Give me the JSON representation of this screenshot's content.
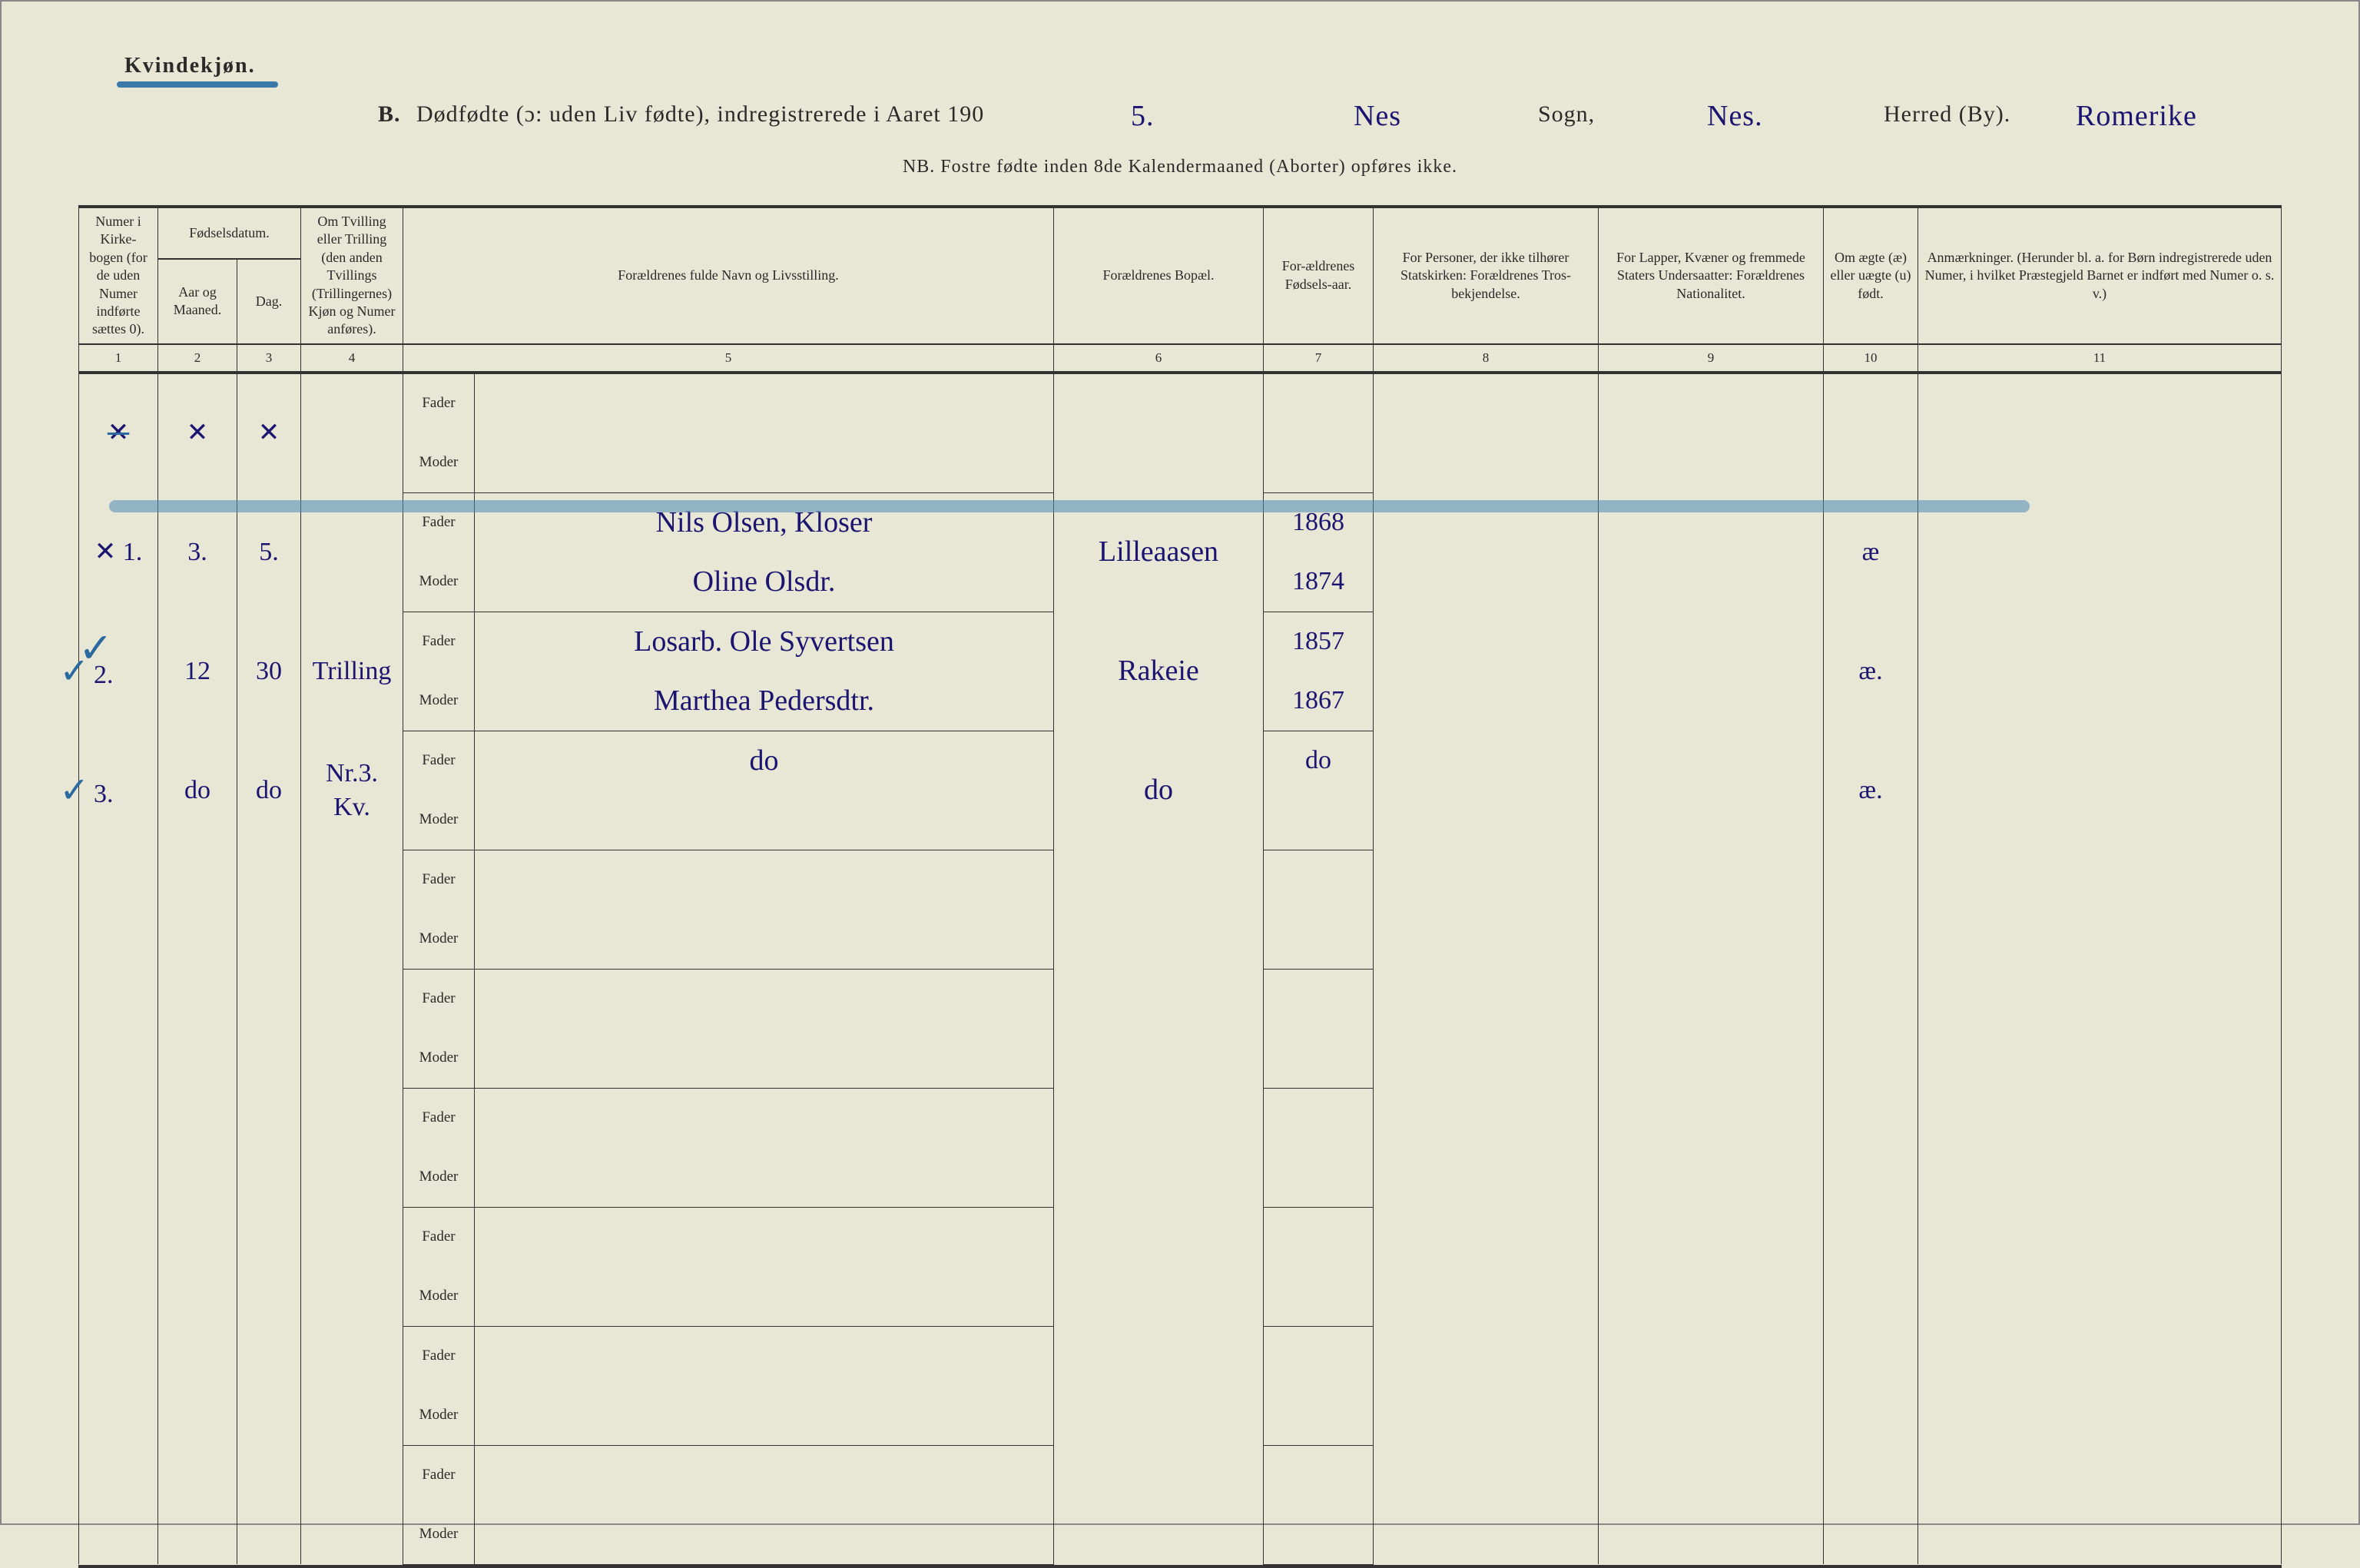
{
  "header": {
    "gender": "Kvindekjøn.",
    "section_letter": "B.",
    "title_main": "Dødfødte (ɔ: uden Liv fødte), indregistrerede i Aaret 190",
    "year_suffix_hand": "5.",
    "sogn_hand": "Nes",
    "sogn_label": "Sogn,",
    "herred_hand": "Nes.",
    "herred_label": "Herred (By).",
    "region_hand": "Romerike",
    "subtitle": "NB. Fostre fødte inden 8de Kalendermaaned (Aborter) opføres ikke."
  },
  "columns": {
    "c1": "Numer i Kirke-bogen (for de uden Numer indførte sættes 0).",
    "c2_group": "Fødselsdatum.",
    "c2a": "Aar og Maaned.",
    "c2b": "Dag.",
    "c3": "Om Tvilling eller Trilling (den anden Tvillings (Trillingernes) Kjøn og Numer anføres).",
    "c5": "Forældrenes fulde Navn og Livsstilling.",
    "c6": "Forældrenes Bopæl.",
    "c7": "For-ældrenes Fødsels-aar.",
    "c8": "For Personer, der ikke tilhører Statskirken: Forældrenes Tros-bekjendelse.",
    "c9": "For Lapper, Kvæner og fremmede Staters Undersaatter: Forældrenes Nationalitet.",
    "c10": "Om ægte (æ) eller uægte (u) født.",
    "c11": "Anmærkninger. (Herunder bl. a. for Børn indregistrerede uden Numer, i hvilket Præstegjeld Barnet er indført med Numer o. s. v.)",
    "role_fader": "Fader",
    "role_moder": "Moder",
    "nums": [
      "1",
      "2",
      "3",
      "4",
      "5",
      "6",
      "7",
      "8",
      "9",
      "10",
      "11"
    ]
  },
  "rows": [
    {
      "num_mark": "✕",
      "aar": "✕",
      "dag": "✕",
      "tvilling": "",
      "fader": "",
      "moder": "",
      "bopel": "",
      "fodsaar_f": "",
      "fodsaar_m": "",
      "aegte": "",
      "struck": true
    },
    {
      "num_mark": "✕ 1.",
      "aar": "3.",
      "dag": "5.",
      "tvilling": "",
      "fader": "Nils Olsen, Kloser",
      "moder": "Oline Olsdr.",
      "bopel": "Lilleaasen",
      "fodsaar_f": "1868",
      "fodsaar_m": "1874",
      "aegte": "æ",
      "blue_overlay": true
    },
    {
      "num_mark": "2.",
      "aar": "12",
      "dag": "30",
      "tvilling": "Trilling",
      "fader": "Losarb. Ole Syvertsen",
      "moder": "Marthea Pedersdtr.",
      "bopel": "Rakeie",
      "fodsaar_f": "1857",
      "fodsaar_m": "1867",
      "aegte": "æ.",
      "check": true
    },
    {
      "num_mark": "3.",
      "aar": "do",
      "dag": "do",
      "tvilling": "Nr.3. Kv.",
      "fader": "do",
      "moder": "",
      "bopel": "do",
      "fodsaar_f": "do",
      "fodsaar_m": "",
      "aegte": "æ.",
      "check": true
    }
  ],
  "style": {
    "paper_bg": "#e8e6d4",
    "ink": "#2a2a2a",
    "hand_ink": "#1b1470",
    "blue_pencil": "#3b7aa8",
    "border": "#333333",
    "header_fontsize": 19,
    "hand_fontsize": 38,
    "title_fontsize": 30
  }
}
